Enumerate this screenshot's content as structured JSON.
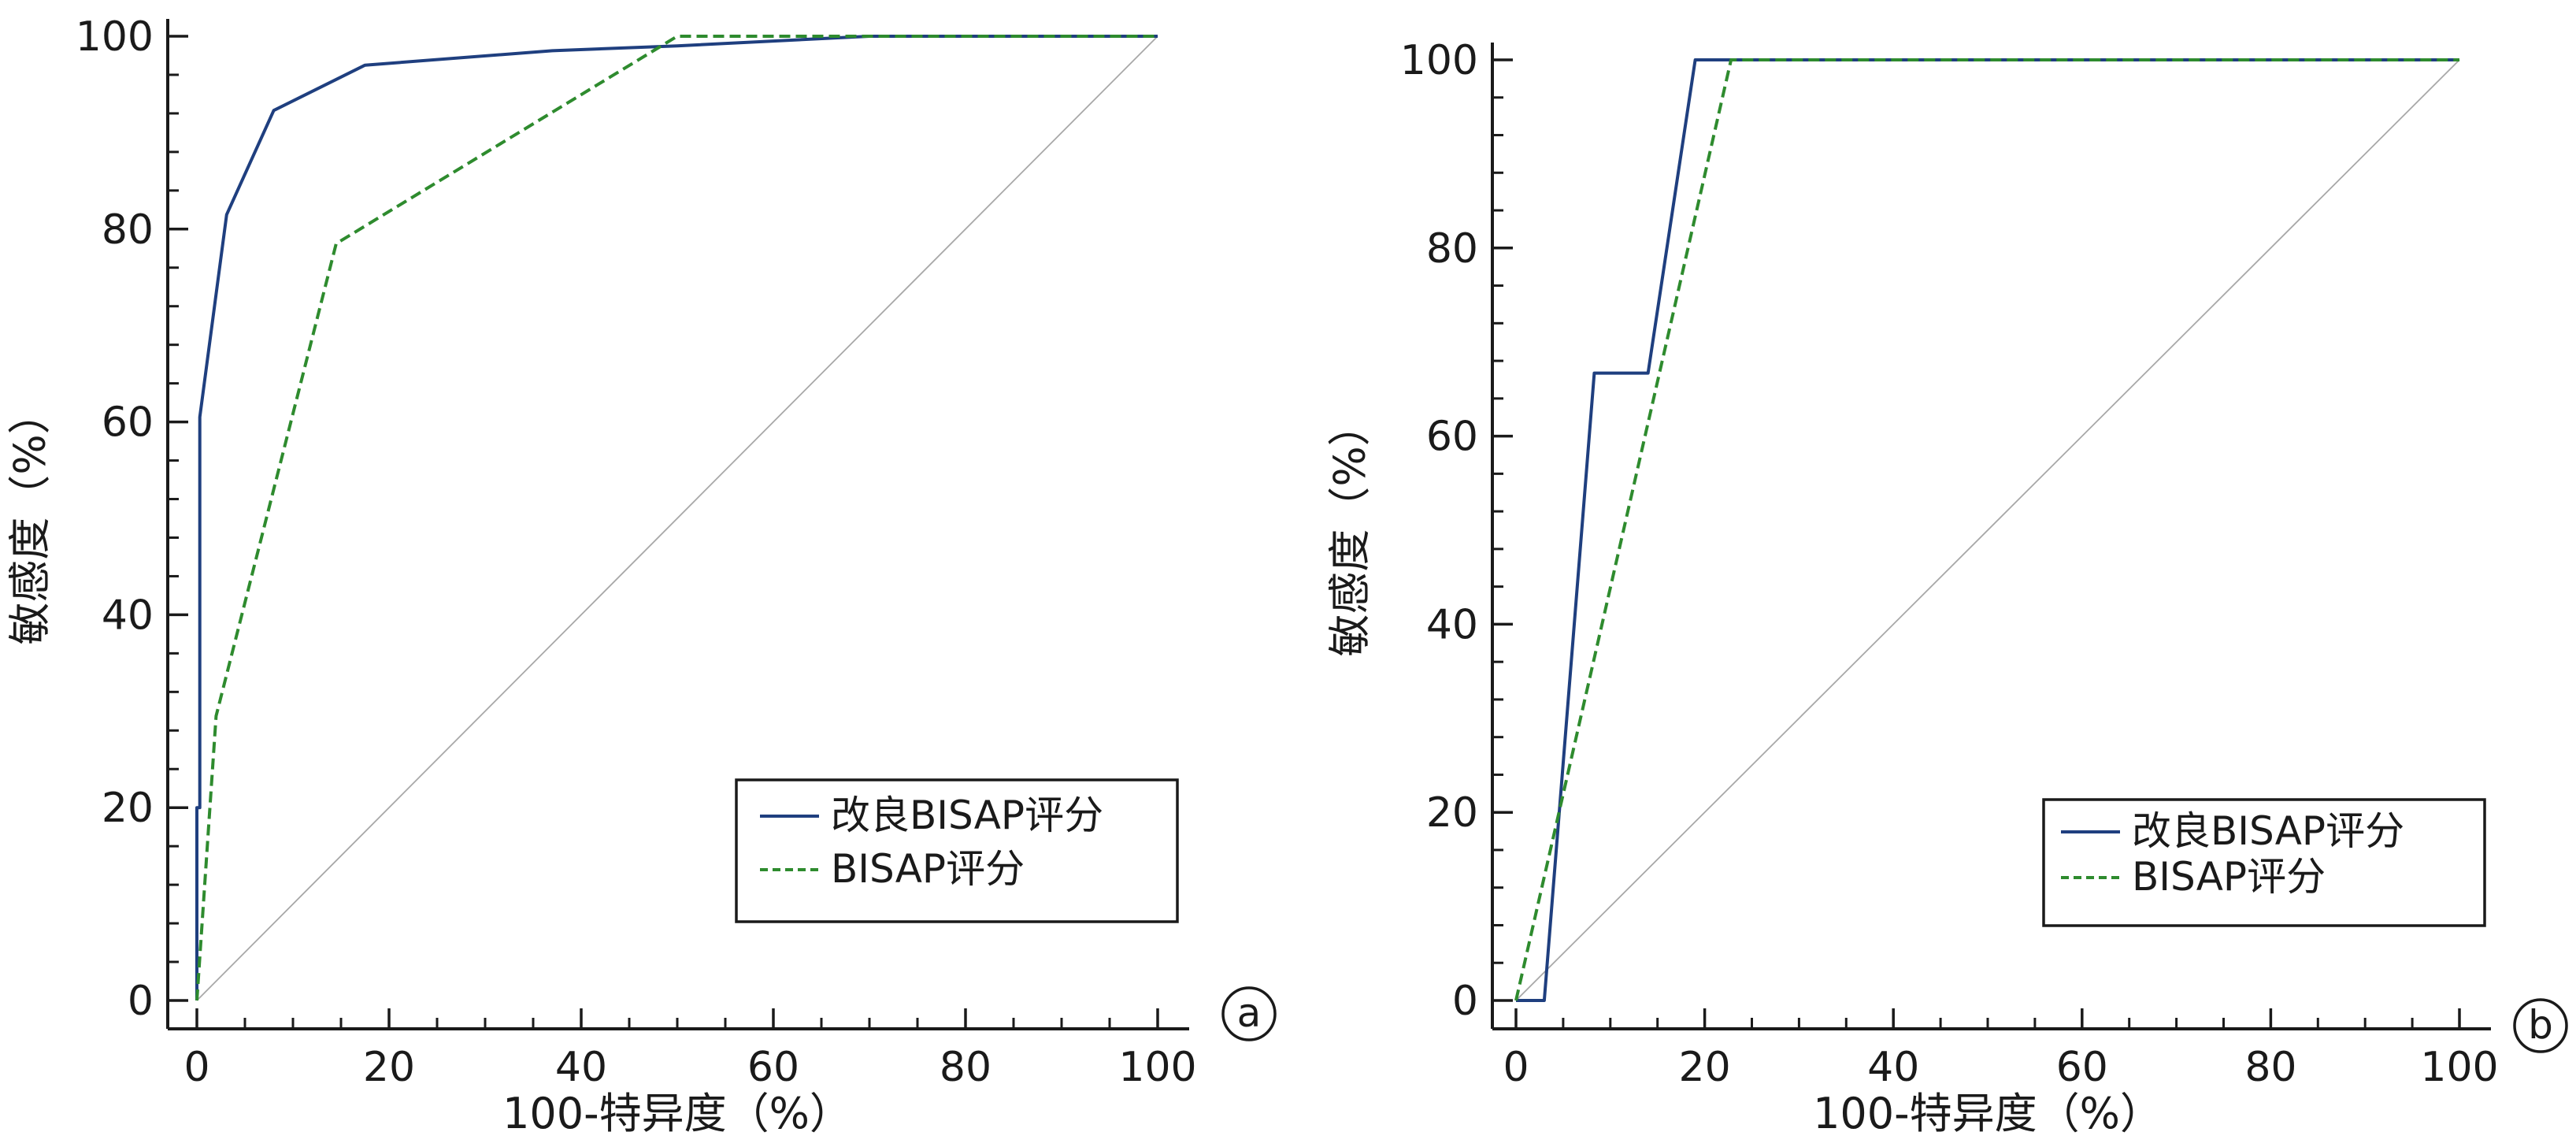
{
  "chart_data": [
    {
      "type": "line",
      "panel_label": "a",
      "xlabel": "100-特异度（%）",
      "ylabel": "敏感度（%）",
      "xlim": [
        0,
        100
      ],
      "ylim": [
        0,
        100
      ],
      "xticks": [
        "0",
        "20",
        "40",
        "60",
        "80",
        "100"
      ],
      "yticks": [
        "0",
        "20",
        "40",
        "60",
        "80",
        "100"
      ],
      "legend_position": "bottom-right",
      "series": [
        {
          "name": "改良BISAP评分",
          "color": "#1f3f7f",
          "style": "solid",
          "x": [
            0,
            0,
            0.3,
            0.3,
            3.1,
            8.0,
            17.5,
            37.0,
            50.0,
            70.0,
            100.0
          ],
          "y": [
            0,
            20,
            20,
            60.5,
            81.5,
            92.3,
            97.0,
            98.5,
            99.0,
            100.0,
            100.0
          ]
        },
        {
          "name": "BISAP评分",
          "color": "#2e8b2e",
          "style": "dashed",
          "x": [
            0,
            2.0,
            14.5,
            50.0,
            70.0,
            100.0
          ],
          "y": [
            0,
            29.5,
            78.5,
            100.0,
            100.0,
            100.0
          ]
        },
        {
          "name": "",
          "color": "#a8a8a8",
          "style": "reference",
          "x": [
            0,
            100
          ],
          "y": [
            0,
            100
          ]
        }
      ]
    },
    {
      "type": "line",
      "panel_label": "b",
      "xlabel": "100-特异度（%）",
      "ylabel": "敏感度（%）",
      "xlim": [
        0,
        100
      ],
      "ylim": [
        0,
        100
      ],
      "xticks": [
        "0",
        "20",
        "40",
        "60",
        "80",
        "100"
      ],
      "yticks": [
        "0",
        "20",
        "40",
        "60",
        "80",
        "100"
      ],
      "legend_position": "bottom-right",
      "series": [
        {
          "name": "改良BISAP评分",
          "color": "#1f3f7f",
          "style": "solid",
          "x": [
            0,
            3.0,
            8.3,
            14.0,
            19.0,
            100.0
          ],
          "y": [
            0,
            0,
            66.7,
            66.7,
            100.0,
            100.0
          ]
        },
        {
          "name": "BISAP评分",
          "color": "#2e8b2e",
          "style": "dashed",
          "x": [
            0,
            22.8,
            100.0
          ],
          "y": [
            0,
            100.0,
            100.0
          ]
        },
        {
          "name": "",
          "color": "#a8a8a8",
          "style": "reference",
          "x": [
            0,
            100
          ],
          "y": [
            0,
            100
          ]
        }
      ]
    }
  ]
}
